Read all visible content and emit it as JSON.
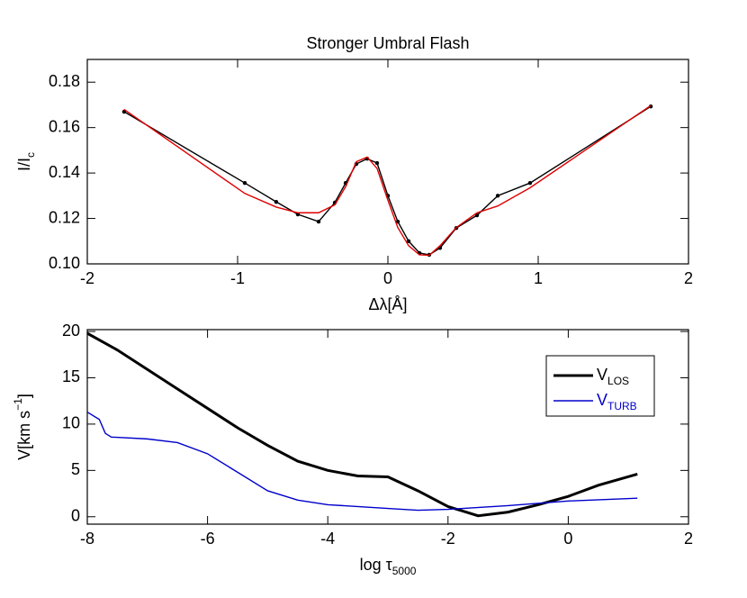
{
  "chart_data": [
    {
      "type": "line",
      "title": "Stronger Umbral Flash",
      "xlabel": [
        "Δλ[Å]"
      ],
      "ylabel": [
        "I/I",
        "c"
      ],
      "xlim": [
        -2,
        2
      ],
      "xticks": [
        -2,
        -1,
        0,
        1,
        2
      ],
      "ylim": [
        0.1,
        0.19
      ],
      "yticks": [
        {
          "value": 0.1,
          "label": "0.10"
        },
        0.12,
        0.14,
        0.16,
        0.18
      ],
      "series": [
        {
          "color": "#000000",
          "markers": true,
          "x": [
            -1.755,
            -0.952,
            -0.743,
            -0.599,
            -0.461,
            -0.353,
            -0.281,
            -0.21,
            -0.138,
            -0.072,
            0,
            0.066,
            0.138,
            0.21,
            0.275,
            0.347,
            0.455,
            0.593,
            0.731,
            0.946,
            1.749
          ],
          "values": [
            0.167,
            0.1356,
            0.1273,
            0.1218,
            0.1186,
            0.127,
            0.1356,
            0.144,
            0.1463,
            0.1444,
            0.13,
            0.1186,
            0.11,
            0.1048,
            0.104,
            0.107,
            0.1158,
            0.1214,
            0.13,
            0.1356,
            0.1693
          ]
        },
        {
          "color": "#e00000",
          "markers": false,
          "x": [
            -1.755,
            -0.952,
            -0.743,
            -0.599,
            -0.461,
            -0.353,
            -0.281,
            -0.21,
            -0.138,
            -0.072,
            0,
            0.066,
            0.138,
            0.21,
            0.275,
            0.347,
            0.455,
            0.593,
            0.731,
            0.946,
            1.749
          ],
          "values": [
            0.168,
            0.131,
            0.125,
            0.1225,
            0.1225,
            0.126,
            0.134,
            0.145,
            0.147,
            0.142,
            0.128,
            0.116,
            0.108,
            0.104,
            0.1038,
            0.108,
            0.116,
            0.1225,
            0.1255,
            0.1335,
            0.1697
          ]
        }
      ]
    },
    {
      "type": "line",
      "xlabel": [
        "log τ",
        "5000"
      ],
      "ylabel": [
        "V[km s",
        "−1",
        "]"
      ],
      "xlim": [
        -8,
        2
      ],
      "xticks": [
        -8,
        -6,
        -4,
        -2,
        0,
        2
      ],
      "ylim": [
        -0.8,
        20.2
      ],
      "yticks": [
        0,
        5,
        10,
        15,
        20
      ],
      "legend": "upper right",
      "series": [
        {
          "name": [
            "V",
            "LOS"
          ],
          "color": "#000000",
          "width": 3,
          "x": [
            -8,
            -7.5,
            -7,
            -6.5,
            -6,
            -5.5,
            -5,
            -4.5,
            -4,
            -3.5,
            -3,
            -2.5,
            -2,
            -1.5,
            -1,
            -0.5,
            0,
            0.5,
            1.15
          ],
          "values": [
            19.8,
            18,
            15.9,
            13.8,
            11.7,
            9.6,
            7.7,
            6.0,
            5.0,
            4.4,
            4.3,
            2.8,
            1.1,
            0.1,
            0.5,
            1.3,
            2.2,
            3.4,
            4.6
          ]
        },
        {
          "name": [
            "V",
            "TURB"
          ],
          "color": "#0000cc",
          "width": 1.4,
          "x": [
            -8,
            -7.8,
            -7.7,
            -7.6,
            -7,
            -6.5,
            -6,
            -5.5,
            -5,
            -4.5,
            -4,
            -3,
            -2.5,
            -2,
            -1,
            0,
            1.15
          ],
          "values": [
            11.3,
            10.5,
            9.0,
            8.6,
            8.4,
            8.0,
            6.8,
            4.8,
            2.8,
            1.8,
            1.3,
            0.9,
            0.7,
            0.8,
            1.2,
            1.7,
            2.0
          ]
        }
      ]
    }
  ]
}
